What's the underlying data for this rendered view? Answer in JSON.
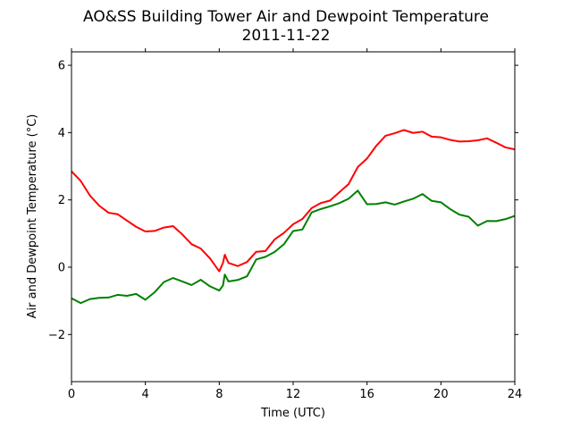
{
  "chart_data": {
    "type": "line",
    "title": "AO&SS Building Tower Air and Dewpoint Temperature",
    "subtitle": "2011-11-22",
    "xlabel": "Time (UTC)",
    "ylabel": "Air and Dewpoint Temperature (°C)",
    "xlim": [
      0,
      24
    ],
    "ylim": [
      -3.4,
      6.4
    ],
    "x_ticks": [
      0,
      4,
      8,
      12,
      16,
      20,
      24
    ],
    "x_tick_labels": [
      "0",
      "4",
      "8",
      "12",
      "16",
      "20",
      "24"
    ],
    "y_ticks": [
      -2,
      0,
      2,
      4,
      6
    ],
    "y_tick_labels": [
      "−2",
      "0",
      "2",
      "4",
      "6"
    ],
    "grid": false,
    "series": [
      {
        "color": "#ff0000",
        "x": [
          0,
          0.5,
          1,
          1.5,
          2,
          2.5,
          3,
          3.5,
          4,
          4.5,
          5,
          5.5,
          6,
          6.5,
          7,
          7.5,
          8,
          8.2,
          8.3,
          8.5,
          9,
          9.5,
          10,
          10.5,
          11,
          11.5,
          12,
          12.5,
          13,
          13.5,
          14,
          14.5,
          15,
          15.5,
          16,
          16.5,
          17,
          17.5,
          18,
          18.5,
          19,
          19.5,
          20,
          20.5,
          21,
          21.5,
          22,
          22.5,
          23,
          23.5,
          24
        ],
        "values": [
          2.85,
          2.55,
          2.15,
          1.8,
          1.65,
          1.55,
          1.4,
          1.2,
          1.05,
          1.1,
          1.15,
          1.25,
          0.95,
          0.7,
          0.55,
          0.25,
          -0.1,
          0.1,
          0.4,
          0.1,
          0.05,
          0.15,
          0.45,
          0.5,
          0.8,
          1.05,
          1.25,
          1.45,
          1.75,
          1.9,
          2.0,
          2.2,
          2.5,
          2.95,
          3.25,
          3.6,
          3.9,
          4.0,
          4.05,
          4.02,
          4.0,
          3.9,
          3.85,
          3.78,
          3.75,
          3.72,
          3.8,
          3.8,
          3.72,
          3.55,
          3.5
        ]
      },
      {
        "color": "#008000",
        "x": [
          0,
          0.5,
          1,
          1.5,
          2,
          2.5,
          3,
          3.5,
          4,
          4.5,
          5,
          5.5,
          6,
          6.5,
          7,
          7.5,
          8,
          8.2,
          8.3,
          8.5,
          9,
          9.5,
          10,
          10.5,
          11,
          11.5,
          12,
          12.5,
          13,
          13.5,
          14,
          14.5,
          15,
          15.5,
          16,
          16.5,
          17,
          17.5,
          18,
          18.5,
          19,
          19.5,
          20,
          20.5,
          21,
          21.5,
          22,
          22.5,
          23,
          23.5,
          24
        ],
        "values": [
          -0.95,
          -1.05,
          -0.95,
          -0.92,
          -0.88,
          -0.85,
          -0.82,
          -0.82,
          -0.95,
          -0.75,
          -0.45,
          -0.3,
          -0.45,
          -0.5,
          -0.4,
          -0.55,
          -0.7,
          -0.55,
          -0.2,
          -0.45,
          -0.35,
          -0.3,
          0.25,
          0.3,
          0.45,
          0.7,
          1.05,
          1.15,
          1.6,
          1.75,
          1.8,
          1.9,
          2.05,
          2.25,
          1.9,
          1.85,
          1.95,
          1.85,
          1.95,
          2.05,
          2.15,
          2.0,
          1.9,
          1.75,
          1.55,
          1.5,
          1.25,
          1.35,
          1.4,
          1.4,
          1.55
        ]
      }
    ]
  }
}
